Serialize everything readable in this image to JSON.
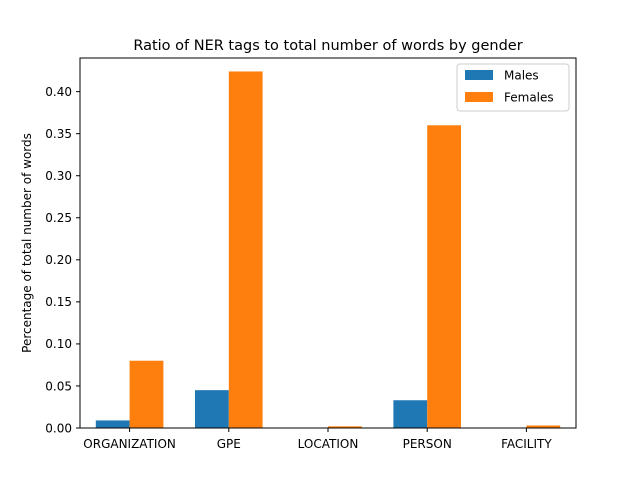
{
  "chart_data": {
    "type": "bar",
    "title": "Ratio of NER tags to total number of words by gender",
    "xlabel": "",
    "ylabel": "Percentage of total number of words",
    "categories": [
      "ORGANIZATION",
      "GPE",
      "LOCATION",
      "PERSON",
      "FACILITY"
    ],
    "series": [
      {
        "name": "Males",
        "color": "#1f77b4",
        "values": [
          0.009,
          0.045,
          0.0,
          0.033,
          0.0
        ]
      },
      {
        "name": "Females",
        "color": "#ff7f0e",
        "values": [
          0.08,
          0.424,
          0.002,
          0.36,
          0.003
        ]
      }
    ],
    "ylim": [
      0,
      0.44
    ],
    "yticks": [
      0.0,
      0.05,
      0.1,
      0.15,
      0.2,
      0.25,
      0.3,
      0.35,
      0.4
    ],
    "ytick_labels": [
      "0.00",
      "0.05",
      "0.10",
      "0.15",
      "0.20",
      "0.25",
      "0.30",
      "0.35",
      "0.40"
    ],
    "grid": false,
    "legend_position": "top-right"
  }
}
